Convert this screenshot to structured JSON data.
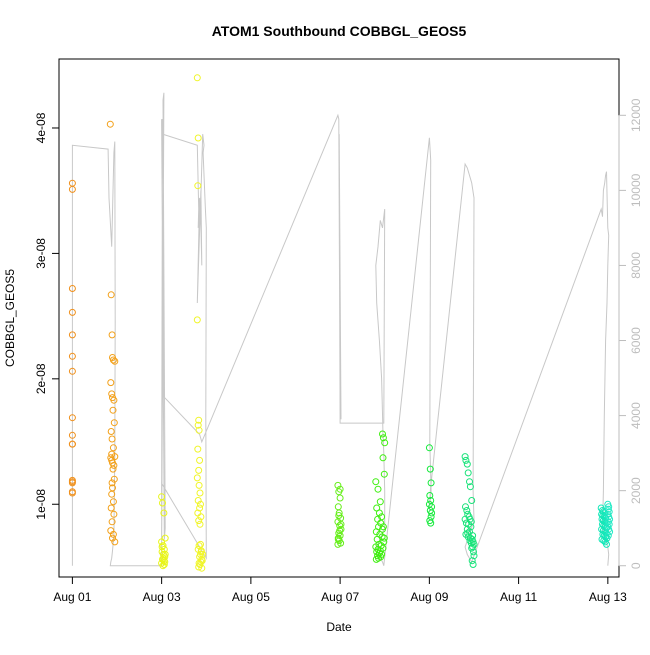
{
  "chart_data": {
    "type": "scatter",
    "title": "ATOM1 Southbound COBBGL_GEOS5",
    "xlabel": "Date",
    "ylabel": "COBBGL_GEOS5",
    "xlim": [
      -0.3,
      12.25
    ],
    "ylim": [
      4.2e-09,
      4.55e-08
    ],
    "y2lim": [
      -300,
      13500
    ],
    "x_ticks": [
      {
        "x": 0,
        "label": "Aug 01"
      },
      {
        "x": 2,
        "label": "Aug 03"
      },
      {
        "x": 4,
        "label": "Aug 05"
      },
      {
        "x": 6,
        "label": "Aug 07"
      },
      {
        "x": 8,
        "label": "Aug 09"
      },
      {
        "x": 10,
        "label": "Aug 11"
      },
      {
        "x": 12,
        "label": "Aug 13"
      }
    ],
    "y_ticks": [
      {
        "y": 1e-08,
        "label": "1e-08"
      },
      {
        "y": 2e-08,
        "label": "2e-08"
      },
      {
        "y": 3e-08,
        "label": "3e-08"
      },
      {
        "y": 4e-08,
        "label": "4e-08"
      }
    ],
    "y2_ticks": [
      {
        "y": 0,
        "label": "0"
      },
      {
        "y": 2000,
        "label": "2000"
      },
      {
        "y": 4000,
        "label": "4000"
      },
      {
        "y": 6000,
        "label": "6000"
      },
      {
        "y": 8000,
        "label": "8000"
      },
      {
        "y": 10000,
        "label": "10000"
      },
      {
        "y": 12000,
        "label": "12000"
      }
    ],
    "grid": false,
    "legend": "none",
    "point_colors": [
      "#f0901b",
      "#f3a11a",
      "#e8f51a",
      "#f0f52a",
      "#66ee1a",
      "#3fef10",
      "#16ea3c",
      "#19e37a",
      "#14e7b8",
      "#22e9c4"
    ],
    "altitude_color": "#c8c8c8",
    "series": [
      {
        "x": [
          0.0,
          0.0,
          0.0,
          0.0,
          0.0,
          0.0,
          0.0,
          0.0,
          0.0,
          0.0,
          0.0,
          0.0,
          0.0,
          0.0,
          0.0,
          0.0
        ],
        "y": [
          3.56e-08,
          3.51e-08,
          2.72e-08,
          2.53e-08,
          2.35e-08,
          2.18e-08,
          2.06e-08,
          1.69e-08,
          1.55e-08,
          1.48e-08,
          1.19e-08,
          1.18e-08,
          1.1e-08,
          1.09e-08,
          1.17e-08,
          1.48e-08
        ],
        "color": "#f0901b"
      },
      {
        "x": [
          0.85,
          0.87,
          0.89,
          0.9,
          0.92,
          0.95,
          0.86,
          0.88,
          0.9,
          0.93,
          0.91,
          0.94,
          0.87,
          0.89,
          0.92,
          0.95,
          0.86,
          0.88,
          0.9,
          0.93,
          0.91,
          0.94,
          0.89,
          0.9,
          0.88,
          0.92,
          0.87,
          0.93,
          0.89,
          0.86,
          0.92,
          0.9,
          0.95,
          0.88
        ],
        "y": [
          4.03e-08,
          2.67e-08,
          2.35e-08,
          2.17e-08,
          2.15e-08,
          2.14e-08,
          1.97e-08,
          1.88e-08,
          1.85e-08,
          1.83e-08,
          1.75e-08,
          1.65e-08,
          1.58e-08,
          1.52e-08,
          1.45e-08,
          1.38e-08,
          1.37e-08,
          1.35e-08,
          1.33e-08,
          1.31e-08,
          1.28e-08,
          1.2e-08,
          1.17e-08,
          1.13e-08,
          1.08e-08,
          1.02e-08,
          9.7e-09,
          9.2e-09,
          8.6e-09,
          7.9e-09,
          7.6e-09,
          7.3e-09,
          7e-09,
          1.4e-08
        ],
        "color": "#f3a11a"
      },
      {
        "x": [
          2.0,
          2.02,
          2.05,
          2.08,
          2.0,
          2.03,
          2.06,
          2.01,
          2.04,
          2.07,
          2.02,
          2.05,
          2.0,
          2.06,
          2.03,
          2.08,
          2.01,
          2.04,
          2.07
        ],
        "y": [
          1.06e-08,
          1.01e-08,
          9.3e-09,
          7.3e-09,
          7e-09,
          6.7e-09,
          6.4e-09,
          6.2e-09,
          6e-09,
          5.8e-09,
          5.6e-09,
          5.5e-09,
          5.3e-09,
          5.2e-09,
          5.1e-09,
          6e-09,
          6.6e-09,
          5.7e-09,
          5.4e-09
        ],
        "color": "#e8f51a"
      },
      {
        "x": [
          2.8,
          2.82,
          2.81,
          2.8,
          2.83,
          2.82,
          2.84,
          2.81,
          2.85,
          2.83,
          2.8,
          2.84,
          2.86,
          2.82,
          2.87,
          2.85,
          2.81,
          2.88,
          2.83,
          2.86,
          2.84,
          2.82,
          2.89,
          2.87,
          2.85,
          2.9,
          2.88,
          2.86,
          2.83,
          2.91,
          2.89,
          2.87,
          2.92,
          2.84,
          2.9
        ],
        "y": [
          4.4e-08,
          3.92e-08,
          3.54e-08,
          2.47e-08,
          1.67e-08,
          1.63e-08,
          1.59e-08,
          1.44e-08,
          1.35e-08,
          1.27e-08,
          1.21e-08,
          1.15e-08,
          1.09e-08,
          1.03e-08,
          1e-08,
          9.7e-09,
          9.3e-09,
          9e-09,
          8.7e-09,
          8.4e-09,
          6.7e-09,
          6.4e-09,
          6.2e-09,
          6e-09,
          5.8e-09,
          5.6e-09,
          5.4e-09,
          5.2e-09,
          5e-09,
          5.5e-09,
          6.3e-09,
          6.8e-09,
          6e-09,
          5.3e-09,
          4.9e-09
        ],
        "color": "#f0f52a"
      },
      {
        "x": [
          5.95,
          5.97,
          6.0,
          5.96,
          5.98,
          6.01,
          5.95,
          5.99,
          6.02,
          5.97,
          6.0,
          5.96,
          5.98,
          6.01,
          5.95,
          5.99,
          6.02,
          5.97,
          6.0,
          5.96
        ],
        "y": [
          1.15e-08,
          1.1e-08,
          1.05e-08,
          9.8e-09,
          9.3e-09,
          8.9e-09,
          8.6e-09,
          8.3e-09,
          8e-09,
          7.7e-09,
          7.5e-09,
          7.3e-09,
          7.1e-09,
          6.9e-09,
          6.8e-09,
          7.9e-09,
          8.4e-09,
          9.1e-09,
          1.12e-08,
          7.2e-09
        ],
        "color": "#66ee1a"
      },
      {
        "x": [
          6.95,
          6.97,
          7.0,
          6.96,
          6.99,
          6.8,
          6.85,
          6.9,
          6.82,
          6.88,
          6.93,
          6.84,
          6.91,
          6.86,
          6.95,
          6.81,
          6.89,
          6.94,
          6.83,
          6.98,
          6.87,
          6.92,
          6.8,
          6.96,
          6.85,
          6.9,
          6.82,
          6.88,
          6.93,
          6.84,
          6.91,
          6.86,
          6.97,
          6.81,
          6.99
        ],
        "y": [
          1.56e-08,
          1.53e-08,
          1.49e-08,
          1.37e-08,
          1.24e-08,
          1.18e-08,
          1.12e-08,
          1.02e-08,
          9.7e-09,
          9.3e-09,
          9e-09,
          8.8e-09,
          8.5e-09,
          8.2e-09,
          8e-09,
          7.8e-09,
          7.6e-09,
          7.4e-09,
          7.2e-09,
          7e-09,
          6.8e-09,
          6.7e-09,
          6.6e-09,
          6.5e-09,
          6.4e-09,
          6.3e-09,
          6.2e-09,
          6.1e-09,
          6e-09,
          5.9e-09,
          5.8e-09,
          5.7e-09,
          8.2e-09,
          5.6e-09,
          7.3e-09
        ],
        "color": "#3fef10"
      },
      {
        "x": [
          8.0,
          8.02,
          8.04,
          8.01,
          8.03,
          8.0,
          8.05,
          8.02,
          8.04,
          8.01,
          8.03,
          8.05
        ],
        "y": [
          1.45e-08,
          1.28e-08,
          1.17e-08,
          1.07e-08,
          1.03e-08,
          1e-08,
          9.8e-09,
          9.5e-09,
          9e-09,
          8.7e-09,
          8.5e-09,
          9.3e-09
        ],
        "color": "#16ea3c"
      },
      {
        "x": [
          8.8,
          8.82,
          8.85,
          8.87,
          8.9,
          8.92,
          8.95,
          8.81,
          8.84,
          8.86,
          8.89,
          8.91,
          8.94,
          8.83,
          8.88,
          8.93,
          8.85,
          8.9,
          8.82,
          8.87,
          8.92,
          8.96,
          8.98,
          9.0,
          8.97,
          8.95,
          8.99,
          9.0,
          8.96,
          8.98,
          8.8,
          8.86,
          8.91,
          8.94,
          8.97
        ],
        "y": [
          1.38e-08,
          1.35e-08,
          1.32e-08,
          1.25e-08,
          1.18e-08,
          1.14e-08,
          1.03e-08,
          9.8e-09,
          9.5e-09,
          9.2e-09,
          9e-09,
          8.8e-09,
          8.6e-09,
          8.5e-09,
          8.4e-09,
          8.2e-09,
          8e-09,
          7.8e-09,
          7.6e-09,
          7.4e-09,
          7.3e-09,
          7.2e-09,
          7e-09,
          6.8e-09,
          6.6e-09,
          6.5e-09,
          6.2e-09,
          5.9e-09,
          5.5e-09,
          5.2e-09,
          8.8e-09,
          7.7e-09,
          7.1e-09,
          6.9e-09,
          7.5e-09
        ],
        "color": "#19e37a"
      },
      {
        "x": [
          11.85,
          11.88,
          11.9,
          11.93,
          11.86,
          11.89,
          11.92,
          11.95,
          11.87,
          11.9,
          11.93,
          11.96,
          11.88,
          11.91,
          11.94,
          11.97,
          11.86,
          11.9,
          11.93,
          11.96,
          11.89,
          11.92,
          11.95,
          11.98,
          11.87,
          11.91,
          11.94,
          11.97
        ],
        "y": [
          9.7e-09,
          9.5e-09,
          9.4e-09,
          9.3e-09,
          9.2e-09,
          9.1e-09,
          9e-09,
          8.9e-09,
          8.8e-09,
          8.7e-09,
          8.6e-09,
          8.5e-09,
          8.4e-09,
          8.3e-09,
          8.2e-09,
          8.1e-09,
          8e-09,
          7.9e-09,
          7.8e-09,
          7.7e-09,
          7.6e-09,
          7.5e-09,
          7.4e-09,
          7.3e-09,
          7.2e-09,
          7.1e-09,
          7e-09,
          6.8e-09
        ],
        "color": "#14e7b8"
      },
      {
        "x": [
          12.0,
          12.02,
          12.01,
          12.03,
          12.0,
          12.02,
          12.04,
          12.01,
          12.03,
          12.0,
          12.02,
          12.04,
          12.01
        ],
        "y": [
          1e-08,
          9.8e-09,
          9.6e-09,
          9.4e-09,
          9.2e-09,
          9e-09,
          8.8e-09,
          8.6e-09,
          8.4e-09,
          8.2e-09,
          8e-09,
          7.8e-09,
          7.5e-09
        ],
        "color": "#22e9c4"
      }
    ],
    "altitude_series": {
      "x": [
        0.0,
        0.0,
        0.8,
        0.82,
        0.88,
        0.93,
        0.95,
        0.96,
        0.95,
        0.93,
        0.9,
        0.88,
        0.86,
        0.85,
        0.85,
        2.0,
        2.02,
        2.0,
        2.05,
        2.03,
        2.08,
        2.06,
        2.0,
        2.02,
        2.8,
        2.83,
        2.82,
        2.85,
        2.8,
        2.88,
        2.9,
        2.87,
        2.92,
        2.95,
        2.93,
        2.98,
        3.0,
        2.99,
        3.0,
        2.0,
        2.0,
        2.02,
        2.0,
        2.05,
        2.85,
        2.9,
        5.95,
        5.97,
        6.0,
        6.02,
        5.98,
        6.0,
        6.96,
        6.98,
        7.0,
        6.95,
        6.9,
        6.85,
        6.8,
        6.82,
        6.88,
        6.93,
        6.96,
        6.98,
        7.0,
        7.0,
        6.82,
        6.85,
        6.9,
        6.95,
        6.98,
        8.0,
        8.02,
        8.03,
        8.01,
        8.04,
        8.0,
        8.02,
        8.8,
        8.85,
        8.9,
        8.95,
        9.0,
        8.98,
        9.0,
        8.8,
        8.85,
        8.9,
        8.95,
        11.85,
        11.88,
        11.9,
        11.93,
        11.95,
        11.97,
        12.0,
        12.02,
        12.0,
        11.98,
        11.95,
        11.92,
        11.9,
        11.88,
        12.0,
        12.02,
        12.0
      ],
      "y": [
        0,
        11200,
        11100,
        9800,
        8500,
        11000,
        11300,
        6500,
        3000,
        800,
        400,
        200,
        100,
        0,
        0,
        0,
        11800,
        200,
        12600,
        12400,
        1000,
        700,
        11900,
        11500,
        11200,
        9500,
        9000,
        9800,
        7000,
        10000,
        8000,
        9500,
        11500,
        11200,
        11000,
        9500,
        9000,
        4000,
        200,
        2200,
        1600,
        11900,
        11800,
        4500,
        3500,
        3300,
        12000,
        11900,
        4100,
        3900,
        11500,
        3800,
        3800,
        3800,
        9500,
        9000,
        9200,
        8500,
        8000,
        7000,
        6000,
        5000,
        3500,
        3000,
        2000,
        1000,
        500,
        300,
        200,
        100,
        0,
        11400,
        11000,
        10800,
        3300,
        2000,
        1500,
        2000,
        10700,
        10600,
        10400,
        10200,
        9800,
        2000,
        1200,
        500,
        300,
        200,
        100,
        9500,
        9300,
        10000,
        10200,
        10400,
        10500,
        9000,
        8800,
        8000,
        7000,
        6000,
        4000,
        2000,
        1000,
        500,
        300,
        0
      ]
    }
  }
}
